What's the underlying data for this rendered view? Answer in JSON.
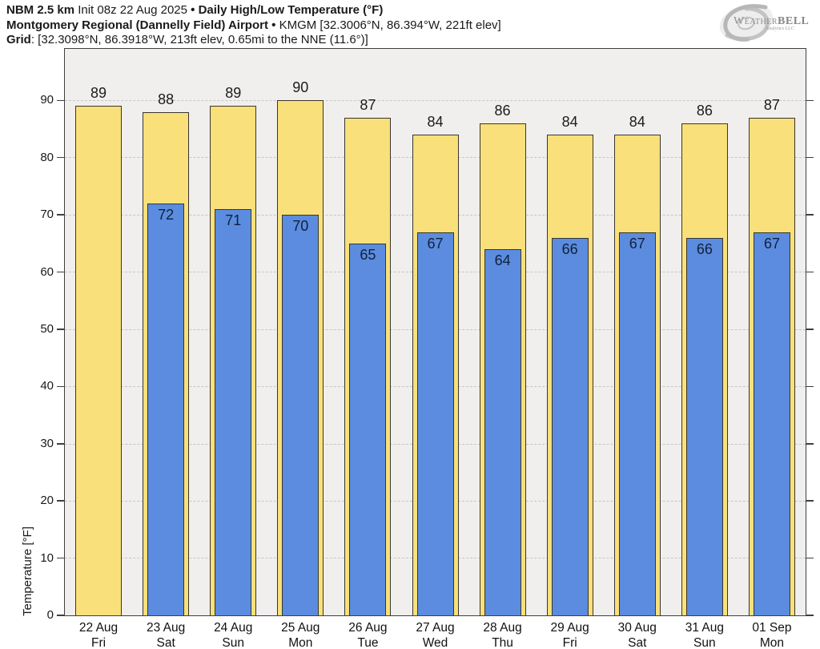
{
  "header": {
    "model": "NBM 2.5 km",
    "init": "Init 08z 22 Aug 2025",
    "sep": "•",
    "product": "Daily High/Low Temperature (°F)",
    "station": "Montgomery Regional (Dannelly Field) Airport",
    "station_meta": "KMGM [32.3006°N, 86.394°W, 221ft elev]",
    "grid_label": "Grid",
    "grid_value": ": [32.3098°N, 86.3918°W, 213ft elev, 0.65mi to the NNE (11.6°)]"
  },
  "logo": {
    "weather": "Weather",
    "bell": "BELL",
    "sub": "Analytics LLC"
  },
  "chart_data": {
    "type": "bar",
    "title": "Daily High/Low Temperature (°F)",
    "ylabel": "Temperature [°F]",
    "ylim": [
      0,
      99
    ],
    "yticks": [
      0,
      10,
      20,
      30,
      40,
      50,
      60,
      70,
      80,
      90
    ],
    "grid": "horizontal-dashed",
    "legend": "none",
    "categories": [
      {
        "date": "22 Aug",
        "day": "Fri"
      },
      {
        "date": "23 Aug",
        "day": "Sat"
      },
      {
        "date": "24 Aug",
        "day": "Sun"
      },
      {
        "date": "25 Aug",
        "day": "Mon"
      },
      {
        "date": "26 Aug",
        "day": "Tue"
      },
      {
        "date": "27 Aug",
        "day": "Wed"
      },
      {
        "date": "28 Aug",
        "day": "Thu"
      },
      {
        "date": "29 Aug",
        "day": "Fri"
      },
      {
        "date": "30 Aug",
        "day": "Sat"
      },
      {
        "date": "31 Aug",
        "day": "Sun"
      },
      {
        "date": "01 Sep",
        "day": "Mon"
      }
    ],
    "series": [
      {
        "name": "High",
        "color": "#f9e07a",
        "border": "#38362f",
        "values": [
          89,
          88,
          89,
          90,
          87,
          84,
          86,
          84,
          84,
          86,
          87
        ]
      },
      {
        "name": "Low",
        "color": "#5b8cdf",
        "border": "#38362f",
        "values": [
          null,
          72,
          71,
          70,
          65,
          67,
          64,
          66,
          67,
          66,
          67
        ]
      }
    ],
    "colors": {
      "plot_background": "#f0efed",
      "frame": "#3f3f3f",
      "gridline": "#c7c6c3",
      "high_bar": "#f9e07a",
      "low_bar": "#5b8cdf",
      "high_label": "#1c1c1c",
      "low_label": "#13203a"
    }
  }
}
